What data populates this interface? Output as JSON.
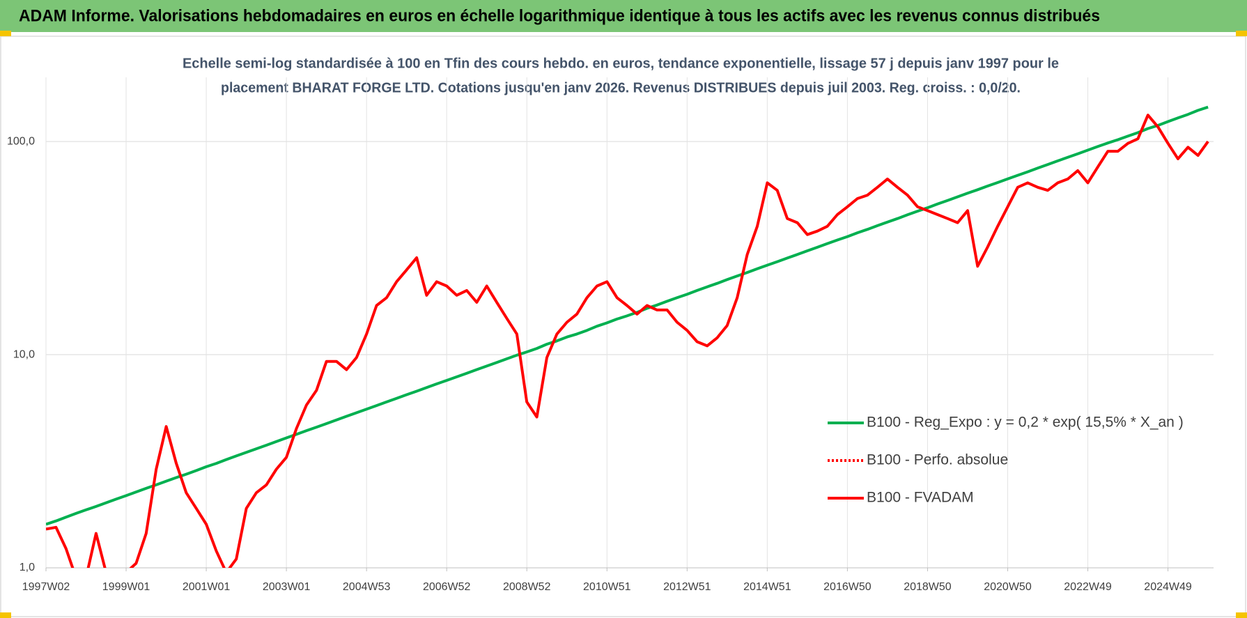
{
  "chart_data": {
    "type": "line",
    "title": "ADAM Informe. Valorisations hebdomadaires en euros en échelle logarithmique identique à tous les actifs avec les revenus connus distribués",
    "subtitle": [
      "Echelle semi-log standardisée à 100 en Tfin des cours hebdo. en euros, tendance exponentielle, lissage 57 j depuis janv 1997 pour le",
      "placement BHARAT FORGE LTD. Cotations jusqu'en janv 2026.  Revenus DISTRIBUES depuis juil 2003.  Reg. croiss. : 0,0/20."
    ],
    "log_scale": true,
    "grid": true,
    "legend_position": "right",
    "ylim": [
      1,
      200
    ],
    "yticks": [
      {
        "value": 1,
        "label": "1,0"
      },
      {
        "value": 10,
        "label": "10,0"
      },
      {
        "value": 100,
        "label": "100,0"
      }
    ],
    "categories": [
      "1997W02",
      null,
      null,
      null,
      null,
      null,
      null,
      null,
      "1999W01",
      null,
      null,
      null,
      null,
      null,
      null,
      null,
      "2001W01",
      null,
      null,
      null,
      null,
      null,
      null,
      null,
      "2003W01",
      null,
      null,
      null,
      null,
      null,
      null,
      null,
      "2004W53",
      null,
      null,
      null,
      null,
      null,
      null,
      null,
      "2006W52",
      null,
      null,
      null,
      null,
      null,
      null,
      null,
      "2008W52",
      null,
      null,
      null,
      null,
      null,
      null,
      null,
      "2010W51",
      null,
      null,
      null,
      null,
      null,
      null,
      null,
      "2012W51",
      null,
      null,
      null,
      null,
      null,
      null,
      null,
      "2014W51",
      null,
      null,
      null,
      null,
      null,
      null,
      null,
      "2016W50",
      null,
      null,
      null,
      null,
      null,
      null,
      null,
      "2018W50",
      null,
      null,
      null,
      null,
      null,
      null,
      null,
      "2020W50",
      null,
      null,
      null,
      null,
      null,
      null,
      null,
      "2022W49",
      null,
      null,
      null,
      null,
      null,
      null,
      null,
      "2024W49",
      null,
      null,
      null,
      null
    ],
    "series": [
      {
        "name": "B100 - Reg_Expo : y = 0,2 * exp( 15,5% *  X_an )",
        "color": "#00b050",
        "dash": "solid",
        "values": [
          1.6,
          1.66,
          1.73,
          1.8,
          1.87,
          1.94,
          2.02,
          2.1,
          2.18,
          2.27,
          2.36,
          2.45,
          2.55,
          2.65,
          2.75,
          2.86,
          2.98,
          3.09,
          3.22,
          3.35,
          3.48,
          3.62,
          3.76,
          3.91,
          4.07,
          4.23,
          4.4,
          4.57,
          4.75,
          4.94,
          5.14,
          5.34,
          5.55,
          5.77,
          6.0,
          6.24,
          6.49,
          6.74,
          7.01,
          7.29,
          7.57,
          7.87,
          8.18,
          8.51,
          8.84,
          9.19,
          9.56,
          9.94,
          10.3,
          10.7,
          11.2,
          11.6,
          12.1,
          12.5,
          13.0,
          13.6,
          14.1,
          14.7,
          15.2,
          15.8,
          16.5,
          17.1,
          17.8,
          18.5,
          19.2,
          20.0,
          20.8,
          21.6,
          22.5,
          23.4,
          24.3,
          25.3,
          26.3,
          27.3,
          28.4,
          29.5,
          30.7,
          31.9,
          33.2,
          34.5,
          35.8,
          37.3,
          38.7,
          40.3,
          41.9,
          43.5,
          45.3,
          47.1,
          48.9,
          50.9,
          52.9,
          55.0,
          57.2,
          59.4,
          61.8,
          64.2,
          66.8,
          69.4,
          72.1,
          75.0,
          78.0,
          81.1,
          84.3,
          87.6,
          91.1,
          94.7,
          98.4,
          102,
          106,
          110,
          115,
          119,
          124,
          129,
          134,
          140,
          145
        ]
      },
      {
        "name": "B100 - Perfo. absolue",
        "color": "#ff0000",
        "dash": "dotted",
        "values": [
          null,
          null,
          null,
          null,
          null,
          null,
          null,
          null,
          null,
          null,
          null,
          null,
          null,
          null,
          null,
          null,
          null,
          null,
          null,
          null,
          null,
          null,
          null,
          null,
          null,
          null,
          null,
          null,
          null,
          null,
          null,
          null,
          null,
          null,
          null,
          null,
          null,
          null,
          null,
          null,
          null,
          null,
          null,
          null,
          null,
          null,
          null,
          null,
          null,
          null,
          null,
          null,
          null,
          null,
          null,
          null,
          null,
          null,
          null,
          null,
          null,
          null,
          null,
          null,
          null,
          null,
          null,
          null,
          null,
          null,
          null,
          null,
          null,
          null,
          null,
          null,
          null,
          null,
          null,
          null,
          null,
          null,
          null,
          null,
          null,
          null,
          null,
          null,
          null,
          null,
          null,
          null,
          null,
          null,
          null,
          null,
          null,
          null,
          null,
          null,
          null,
          null,
          null,
          null,
          null,
          null,
          null,
          null,
          null,
          null,
          null,
          null,
          null,
          null,
          null,
          null,
          null
        ]
      },
      {
        "name": "B100 - FVADAM",
        "color": "#ff0000",
        "dash": "solid",
        "values": [
          1.52,
          1.55,
          1.23,
          0.9,
          0.9,
          1.45,
          0.95,
          0.85,
          0.95,
          1.05,
          1.45,
          2.9,
          4.6,
          3.1,
          2.25,
          1.9,
          1.6,
          1.2,
          0.95,
          1.1,
          1.9,
          2.25,
          2.45,
          2.9,
          3.3,
          4.5,
          5.8,
          6.8,
          9.3,
          9.3,
          8.5,
          9.7,
          12.5,
          17,
          18.5,
          22,
          25,
          28.5,
          19,
          22,
          21,
          19,
          20,
          17.6,
          21,
          17.6,
          14.8,
          12.5,
          6.0,
          5.1,
          9.7,
          12.5,
          14.2,
          15.5,
          18.5,
          21,
          22,
          18.5,
          17,
          15.5,
          17,
          16.2,
          16.2,
          14.2,
          13,
          11.5,
          11,
          12,
          13.7,
          18.5,
          29.5,
          40,
          64,
          59,
          43.5,
          41.6,
          36.6,
          38,
          40,
          45.4,
          49.4,
          54,
          56,
          61,
          66.7,
          61,
          56,
          49.4,
          47.4,
          45.4,
          43.5,
          41.6,
          47.4,
          26,
          32,
          40,
          49.4,
          61,
          64,
          61,
          59,
          64,
          66.7,
          73,
          64,
          76,
          90,
          90,
          98,
          103,
          133,
          117,
          98,
          83,
          94,
          86,
          100
        ]
      }
    ]
  }
}
